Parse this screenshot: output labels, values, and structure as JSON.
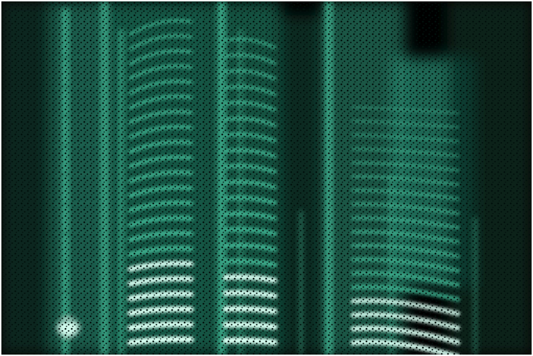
{
  "image": {
    "subject": "spectrogram-visualization",
    "palette": {
      "background": "#000000",
      "glow": "#3fb08f",
      "bright": "#d9fff2",
      "mid": "#1f6e58",
      "speckle": "#02110d"
    },
    "segments": [
      {
        "name": "segment-1",
        "harmonic_count": 0
      },
      {
        "name": "segment-2",
        "harmonic_count": 22
      },
      {
        "name": "segment-3",
        "harmonic_count": 20
      },
      {
        "name": "segment-4",
        "harmonic_count": 18
      }
    ]
  }
}
